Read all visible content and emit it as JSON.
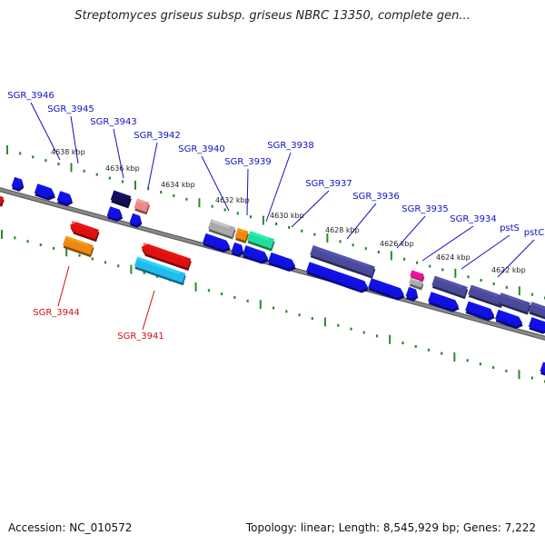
{
  "title": "Streptomyces griseus subsp. griseus NBRC 13350, complete gen...",
  "footer": {
    "accession": "Accession: NC_010572",
    "summary": "Topology: linear; Length: 8,545,929 bp; Genes: 7,222"
  },
  "colors": {
    "label_top": "#1010c0",
    "label_bottom": "#cc1111",
    "backbone": "#888888",
    "ticks": "#2a8a2a",
    "gene_blue": "#1010e0",
    "gene_slate": "#4a4a9a",
    "gene_red": "#dd1111",
    "gene_cyan": "#22bbee",
    "gene_orange": "#ee8811",
    "gene_green": "#22dd99",
    "gene_gray": "#aaaaaa",
    "gene_pink": "#ee8888",
    "gene_magenta": "#ee1199",
    "gene_navy": "#10105a"
  },
  "kbp_labels": [
    "4638 kbp",
    "4636 kbp",
    "4634 kbp",
    "4632 kbp",
    "4630 kbp",
    "4628 kbp",
    "4626 kbp",
    "4624 kbp",
    "4622 kbp"
  ],
  "genes_top": [
    "SGR_3946",
    "SGR_3945",
    "SGR_3943",
    "SGR_3942",
    "SGR_3940",
    "SGR_3939",
    "SGR_3938",
    "SGR_3937",
    "SGR_3936",
    "SGR_3935",
    "SGR_3934",
    "pstS",
    "pstC"
  ],
  "genes_bottom": [
    "SGR_3944",
    "SGR_3941"
  ]
}
